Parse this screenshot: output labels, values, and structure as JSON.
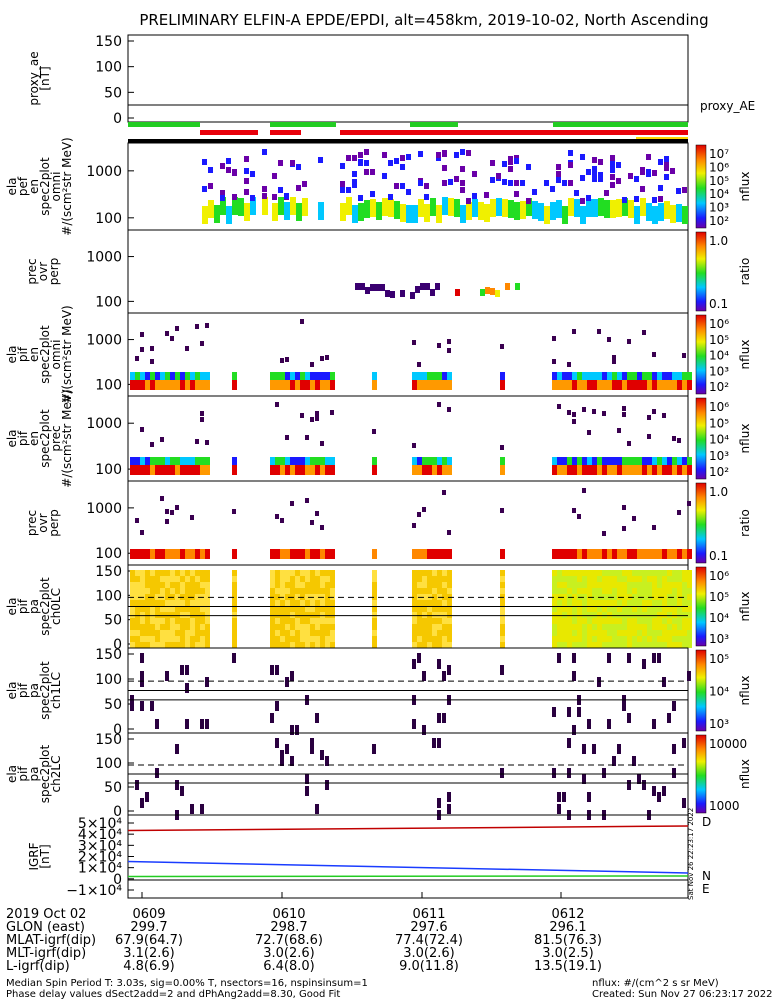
{
  "chart_data": {
    "type": "heatmap",
    "title": "PRELIMINARY ELFIN-A EPDE/EPDI, alt=458km, 2019-10-02, North Ascending",
    "panels": [
      {
        "id": "proxy_ae",
        "ylabel_lines": [
          "proxy_ae",
          "[nT]"
        ],
        "yticks": [
          "150",
          "100",
          "50",
          "0"
        ],
        "ylim": [
          -10,
          160
        ],
        "legend": "proxy_AE",
        "kind": "line",
        "series": [
          {
            "name": "proxy_AE",
            "x_min": [
              0,
              70
            ],
            "values": [
              18,
              18
            ]
          }
        ]
      },
      {
        "id": "ela_pef_en_omni",
        "ylabel_lines": [
          "ela",
          "pef",
          "en",
          "spec2plot",
          "omni",
          "#/(scm²str MeV)"
        ],
        "yticks": [
          "1000",
          "100"
        ],
        "scale": "log",
        "cbar_label": "nflux",
        "cbar_ticks": [
          "10⁷",
          "10⁶",
          "10⁵",
          "10⁴",
          "10³",
          "10²"
        ]
      },
      {
        "id": "ela_pef_prec_ratio",
        "ylabel_lines": [
          "prec",
          "ovr",
          "perp"
        ],
        "yticks": [
          "1000",
          "100"
        ],
        "scale": "log",
        "cbar_label": "ratio",
        "cbar_ticks": [
          "1.0",
          "0.1"
        ]
      },
      {
        "id": "ela_pif_en_omni",
        "ylabel_lines": [
          "ela",
          "pif",
          "en",
          "spec2plot",
          "omni",
          "#/(scm²str MeV)"
        ],
        "yticks": [
          "1000",
          "100"
        ],
        "scale": "log",
        "cbar_label": "nflux",
        "cbar_ticks": [
          "10⁶",
          "10⁵",
          "10⁴",
          "10³",
          "10²"
        ]
      },
      {
        "id": "ela_pif_en_prec",
        "ylabel_lines": [
          "ela",
          "pif",
          "en",
          "spec2plot",
          "prec",
          "#/(scm²str MeV)"
        ],
        "yticks": [
          "1000",
          "100"
        ],
        "scale": "log",
        "cbar_label": "nflux",
        "cbar_ticks": [
          "10⁶",
          "10⁵",
          "10⁴",
          "10³",
          "10²"
        ]
      },
      {
        "id": "ela_pif_prec_ratio",
        "ylabel_lines": [
          "prec",
          "ovr",
          "perp"
        ],
        "yticks": [
          "1000",
          "100"
        ],
        "scale": "log",
        "cbar_label": "ratio",
        "cbar_ticks": [
          "1.0",
          "0.1"
        ]
      },
      {
        "id": "ela_pif_pa_ch0",
        "ylabel_lines": [
          "ela",
          "pif",
          "pa",
          "spec2plot",
          "ch0LC"
        ],
        "yticks": [
          "150",
          "100",
          "50",
          "0"
        ],
        "ylim": [
          0,
          180
        ],
        "cbar_label": "nflux",
        "cbar_ticks": [
          "10⁶",
          "10⁵",
          "10⁴",
          "10³"
        ]
      },
      {
        "id": "ela_pif_pa_ch1",
        "ylabel_lines": [
          "ela",
          "pif",
          "pa",
          "spec2plot",
          "ch1LC"
        ],
        "yticks": [
          "150",
          "100",
          "50",
          "0"
        ],
        "ylim": [
          0,
          180
        ],
        "cbar_label": "nflux",
        "cbar_ticks": [
          "10⁵",
          "10⁴",
          "10³"
        ]
      },
      {
        "id": "ela_pif_pa_ch2",
        "ylabel_lines": [
          "ela",
          "pif",
          "pa",
          "spec2plot",
          "ch2LC"
        ],
        "yticks": [
          "150",
          "100",
          "50",
          "0"
        ],
        "ylim": [
          0,
          180
        ],
        "cbar_label": "nflux",
        "cbar_ticks": [
          "10000",
          "1000"
        ]
      },
      {
        "id": "igrf",
        "ylabel_lines": [
          "IGRF",
          "[nT]"
        ],
        "yticks": [
          "5×10⁴",
          "4×10⁴",
          "3×10⁴",
          "2×10⁴",
          "1×10⁴",
          "0",
          "−1×10⁴"
        ],
        "ylim": [
          -15000,
          52000
        ],
        "kind": "line",
        "legend": [
          "D",
          "N",
          "E"
        ],
        "series": [
          {
            "name": "D",
            "x_min": [
              0,
              70
            ],
            "values": [
              44500,
              49000
            ]
          },
          {
            "name": "N",
            "x_min": [
              0,
              70
            ],
            "values": [
              13500,
              2000
            ]
          },
          {
            "name": "E",
            "x_min": [
              0,
              70
            ],
            "values": [
              -1500,
              -1000
            ]
          }
        ]
      }
    ],
    "x_axis": {
      "tick_labels": [
        "0609",
        "0610",
        "0611",
        "0612"
      ],
      "rows": [
        {
          "label": "2019 Oct 02",
          "values": [
            "0609",
            "0610",
            "0611",
            "0612"
          ]
        },
        {
          "label": "GLON (east)",
          "values": [
            "299.7",
            "298.7",
            "297.6",
            "296.1"
          ]
        },
        {
          "label": "MLAT-igrf(dip)",
          "values": [
            "67.9(64.7)",
            "72.7(68.6)",
            "77.4(72.4)",
            "81.5(76.3)"
          ]
        },
        {
          "label": "MLT-igrf(dip)",
          "values": [
            "3.1(2.6)",
            "3.0(2.6)",
            "3.0(2.6)",
            "3.0(2.5)"
          ]
        },
        {
          "label": "L-igrf(dip)",
          "values": [
            "4.8(6.9)",
            "6.4(8.0)",
            "9.0(11.8)",
            "13.5(19.1)"
          ]
        }
      ]
    },
    "side_stamp": "Sat Nov 26 22:23:17 2022",
    "footer": {
      "left_line1": "Median Spin Period T: 3.03s, sig=0.00% T, nsectors=16, nspinsinsum=1",
      "left_line2": "Phase delay values dSect2add=2 and dPhAng2add=8.30, Good Fit",
      "right_line1": "nflux: #/(cm^2 s sr MeV)",
      "right_line2": "Created: Sun Nov 27 06:23:17 2022"
    },
    "colors": {
      "red": "#e8000b",
      "green": "#22cc22",
      "blue": "#1a1aff",
      "yellow": "#ffd700"
    }
  }
}
